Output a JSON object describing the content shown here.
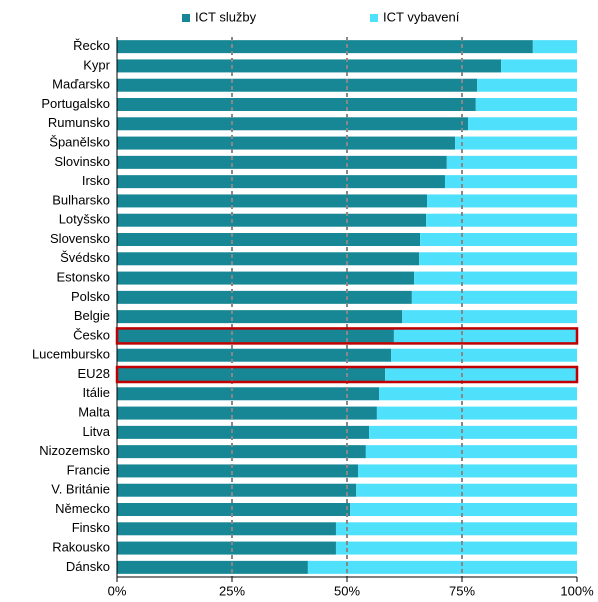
{
  "chart_data": {
    "type": "stacked_barh",
    "categories": [
      "Řecko",
      "Kypr",
      "Maďarsko",
      "Portugalsko",
      "Rumunsko",
      "Španělsko",
      "Slovinsko",
      "Irsko",
      "Bulharsko",
      "Lotyšsko",
      "Slovensko",
      "Švédsko",
      "Estonsko",
      "Polsko",
      "Belgie",
      "Česko",
      "Lucembursko",
      "EU28",
      "Itálie",
      "Malta",
      "Litva",
      "Nizozemsko",
      "Francie",
      "V. Británie",
      "Německo",
      "Finsko",
      "Rakousko",
      "Dánsko"
    ],
    "series": [
      {
        "name": "ICT služby",
        "color": "#178796",
        "values": [
          90.4,
          83.5,
          78.3,
          78,
          76.3,
          73.5,
          71.7,
          71.3,
          67.4,
          67.2,
          65.9,
          65.7,
          64.6,
          64.1,
          62,
          60.2,
          59.6,
          58.3,
          57,
          56.5,
          54.8,
          54.1,
          52.4,
          52,
          50.7,
          47.6,
          47.6,
          41.5
        ]
      },
      {
        "name": "ICT vybavení",
        "color": "#4fe0fb",
        "values": [
          9.6,
          16.5,
          21.7,
          22,
          23.7,
          26.5,
          28.3,
          28.7,
          32.6,
          32.8,
          34.1,
          34.3,
          35.4,
          35.9,
          38,
          39.8,
          40.4,
          41.7,
          43,
          43.5,
          45.2,
          45.9,
          47.6,
          48,
          49.3,
          52.4,
          52.4,
          58.5
        ]
      }
    ],
    "xlim": [
      0,
      100
    ],
    "xticks": [
      {
        "value": 0,
        "label": "0%"
      },
      {
        "value": 25,
        "label": "25%"
      },
      {
        "value": 50,
        "label": "50%"
      },
      {
        "value": 75,
        "label": "75%"
      },
      {
        "value": 100,
        "label": "100%"
      }
    ],
    "grid": true,
    "legend": "top",
    "highlight": [
      15,
      17
    ],
    "highlight_color": "#c00000"
  }
}
